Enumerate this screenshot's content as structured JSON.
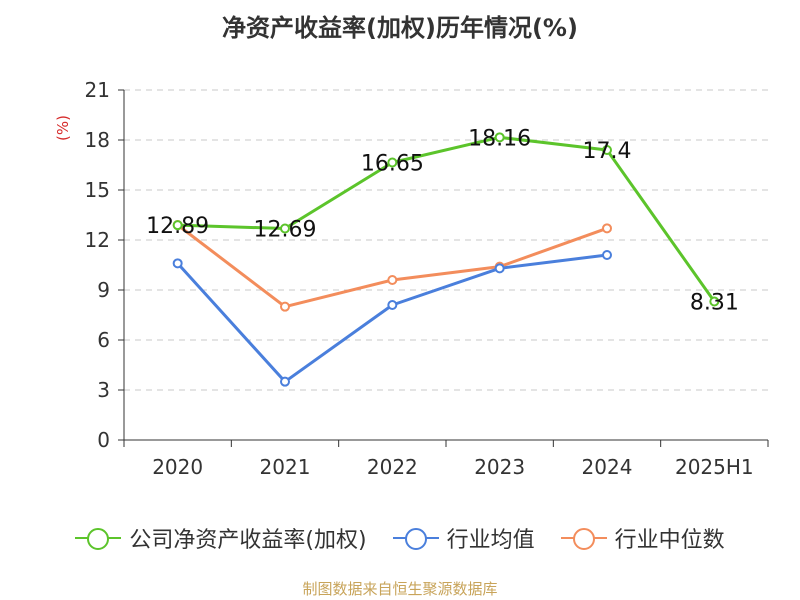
{
  "chart_data": {
    "type": "line",
    "title": "净资产收益率(加权)历年情况(%)",
    "ylabel": "(%)",
    "xlabel": "",
    "categories": [
      "2020",
      "2021",
      "2022",
      "2023",
      "2024",
      "2025H1"
    ],
    "ylim": [
      0,
      21
    ],
    "yticks": [
      0,
      3,
      6,
      9,
      12,
      15,
      18,
      21
    ],
    "grid": "horizontal-dashed",
    "legend_position": "bottom",
    "series": [
      {
        "name": "公司净资产收益率(加权)",
        "color": "#5cc42b",
        "values": [
          12.89,
          12.69,
          16.65,
          18.16,
          17.4,
          8.31
        ],
        "labels": [
          "12.89",
          "12.69",
          "16.65",
          "18.16",
          "17.4",
          "8.31"
        ]
      },
      {
        "name": "行业均值",
        "color": "#4a7fdc",
        "values": [
          10.6,
          3.5,
          8.1,
          10.3,
          11.1,
          null
        ]
      },
      {
        "name": "行业中位数",
        "color": "#f38d5c",
        "values": [
          12.9,
          8.0,
          9.6,
          10.4,
          12.7,
          null
        ]
      }
    ]
  },
  "source_note": "制图数据来自恒生聚源数据库"
}
